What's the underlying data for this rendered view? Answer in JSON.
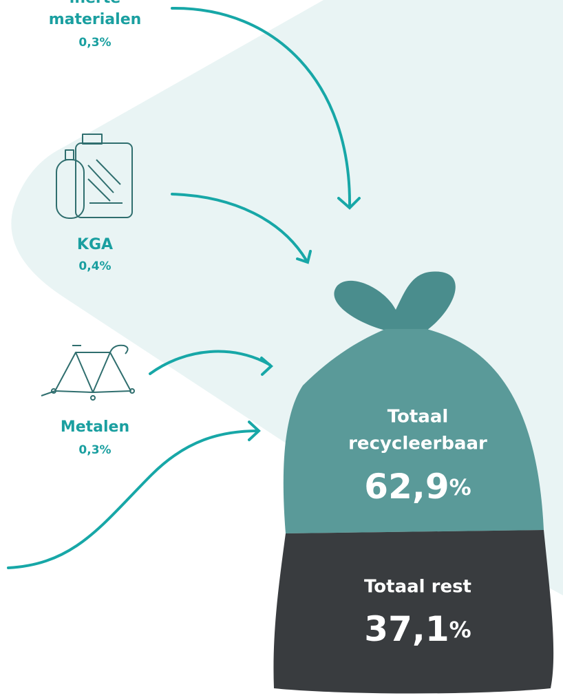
{
  "items": [
    {
      "label_lines": [
        "inerte",
        "materialen"
      ],
      "share": "0,3%"
    },
    {
      "label_lines": [
        "KGA"
      ],
      "share": "0,4%"
    },
    {
      "label_lines": [
        "Metalen"
      ],
      "share": "0,3%"
    }
  ],
  "bag": {
    "recyclable": {
      "label_lines": [
        "Totaal",
        "recycleerbaar"
      ],
      "amount": "62,9",
      "unit": "%"
    },
    "rest": {
      "label_lines": [
        "Totaal rest"
      ],
      "amount": "37,1",
      "unit": "%"
    }
  }
}
